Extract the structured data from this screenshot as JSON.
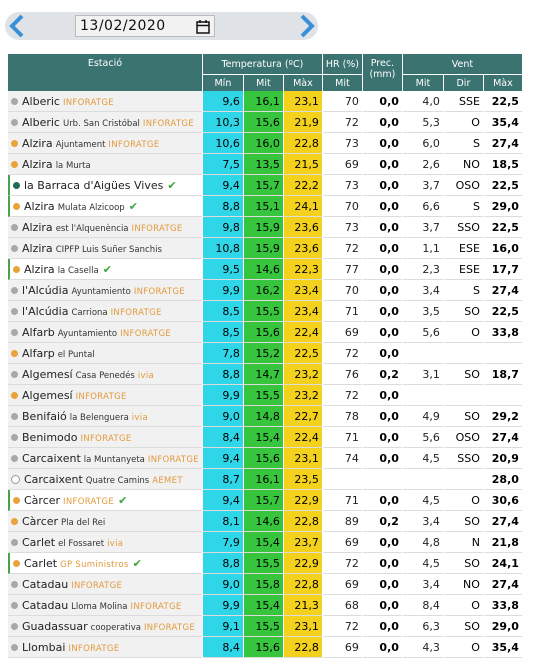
{
  "date": "13/02/2020",
  "header": {
    "station": "Estació",
    "temperature": "Temperatura (ºC)",
    "humidity": "HR (%)",
    "precipitation": "Prec. (mm)",
    "wind": "Vent",
    "sub": [
      "Mín",
      "Mit",
      "Màx",
      "Mit",
      "Mit",
      "Dir",
      "Màx"
    ]
  },
  "rows": [
    {
      "name": "Alberic",
      "source": "INFORATGE",
      "dot": "#a8a8a8",
      "verified": false,
      "cells": [
        "9,6",
        "16,1",
        "23,1",
        "70",
        "0,0",
        "4,0",
        "SSE",
        "22,5"
      ]
    },
    {
      "name": "Alberic",
      "detail": "Urb. San Cristóbal",
      "source": "INFORATGE",
      "dot": "#a8a8a8",
      "verified": false,
      "cells": [
        "10,3",
        "15,6",
        "21,9",
        "72",
        "0,0",
        "5,3",
        "O",
        "35,4"
      ]
    },
    {
      "name": "Alzira",
      "detail": "Ajuntament",
      "source": "INFORATGE",
      "dot": "#e8a33a",
      "verified": false,
      "cells": [
        "10,6",
        "16,0",
        "22,8",
        "73",
        "0,0",
        "6,0",
        "S",
        "27,4"
      ]
    },
    {
      "name": "Alzira",
      "detail": "la Murta",
      "dot": "#e8a33a",
      "verified": false,
      "cells": [
        "7,5",
        "13,5",
        "21,5",
        "69",
        "0,0",
        "2,6",
        "NO",
        "18,5"
      ]
    },
    {
      "name": "la Barraca d'Aigües Vives",
      "dot": "#1f6b5a",
      "verified": true,
      "cells": [
        "9,4",
        "15,7",
        "22,2",
        "73",
        "0,0",
        "3,7",
        "OSO",
        "22,5"
      ]
    },
    {
      "name": "Alzira",
      "detail": "Mulata Alzicoop",
      "dot": "#e8a33a",
      "verified": true,
      "cells": [
        "8,8",
        "15,1",
        "24,1",
        "70",
        "0,0",
        "6,6",
        "S",
        "29,0"
      ]
    },
    {
      "name": "Alzira",
      "detail": "est l'Alquenència",
      "source": "INFORATGE",
      "dot": "#a8a8a8",
      "verified": false,
      "cells": [
        "9,8",
        "15,9",
        "23,6",
        "73",
        "0,0",
        "3,7",
        "SSO",
        "22,5"
      ]
    },
    {
      "name": "Alzira",
      "detail": "CIPFP Luis Suñer Sanchis",
      "dot": "#a8a8a8",
      "verified": false,
      "cells": [
        "10,8",
        "15,9",
        "23,6",
        "72",
        "0,0",
        "1,1",
        "ESE",
        "16,0"
      ]
    },
    {
      "name": "Alzira",
      "detail": "la Casella",
      "dot": "#e8a33a",
      "verified": true,
      "cells": [
        "9,5",
        "14,6",
        "22,3",
        "77",
        "0,0",
        "2,3",
        "ESE",
        "17,7"
      ]
    },
    {
      "name": "l'Alcúdia",
      "detail": "Ayuntamiento",
      "source": "INFORATGE",
      "dot": "#a8a8a8",
      "verified": false,
      "cells": [
        "9,9",
        "16,2",
        "23,4",
        "70",
        "0,0",
        "3,4",
        "S",
        "27,4"
      ]
    },
    {
      "name": "l'Alcúdia",
      "detail": "Carriona",
      "source": "INFORATGE",
      "dot": "#a8a8a8",
      "verified": false,
      "cells": [
        "8,5",
        "15,5",
        "23,4",
        "71",
        "0,0",
        "3,5",
        "SO",
        "22,5"
      ]
    },
    {
      "name": "Alfarb",
      "detail": "Ayuntamiento",
      "source": "INFORATGE",
      "dot": "#a8a8a8",
      "verified": false,
      "cells": [
        "8,5",
        "15,6",
        "22,4",
        "69",
        "0,0",
        "5,6",
        "O",
        "33,8"
      ]
    },
    {
      "name": "Alfarp",
      "detail": "el Puntal",
      "dot": "#e8a33a",
      "verified": false,
      "cells": [
        "7,8",
        "15,2",
        "22,5",
        "72",
        "0,0",
        null,
        null,
        null
      ]
    },
    {
      "name": "Algemesí",
      "detail": "Casa Penedés",
      "source": "ivia",
      "dot": "#a8a8a8",
      "verified": false,
      "cells": [
        "8,8",
        "14,7",
        "23,2",
        "76",
        "0,2",
        "3,1",
        "SO",
        "18,7"
      ]
    },
    {
      "name": "Algemesí",
      "source": "INFORATGE",
      "dot": "#e8a33a",
      "verified": false,
      "cells": [
        "9,9",
        "15,5",
        "23,2",
        "72",
        "0,0",
        null,
        null,
        null
      ]
    },
    {
      "name": "Benifaió",
      "detail": "la Belenguera",
      "source": "ivia",
      "dot": "#a8a8a8",
      "verified": false,
      "cells": [
        "9,0",
        "14,8",
        "22,7",
        "78",
        "0,0",
        "4,9",
        "SO",
        "29,2"
      ]
    },
    {
      "name": "Benimodo",
      "source": "INFORATGE",
      "dot": "#a8a8a8",
      "verified": false,
      "cells": [
        "8,4",
        "15,4",
        "22,4",
        "71",
        "0,0",
        "5,6",
        "OSO",
        "27,4"
      ]
    },
    {
      "name": "Carcaixent",
      "detail": "la Muntanyeta",
      "source": "INFORATGE",
      "dot": "#a8a8a8",
      "verified": false,
      "cells": [
        "9,4",
        "15,6",
        "23,1",
        "74",
        "0,0",
        "4,5",
        "SSO",
        "20,9"
      ]
    },
    {
      "name": "Carcaixent",
      "detail": "Quatre Camins",
      "source": "AEMET",
      "dot": "#ffffff",
      "verified": false,
      "cells": [
        "8,7",
        "16,1",
        "23,5",
        null,
        null,
        null,
        null,
        "28,0"
      ]
    },
    {
      "name": "Càrcer",
      "source": "INFORATGE",
      "dot": "#e8a33a",
      "verified": true,
      "cells": [
        "9,4",
        "15,7",
        "22,9",
        "71",
        "0,0",
        "4,5",
        "O",
        "30,6"
      ]
    },
    {
      "name": "Càrcer",
      "detail": "Pla del Rei",
      "dot": "#e8a33a",
      "verified": false,
      "cells": [
        "8,1",
        "14,6",
        "22,8",
        "89",
        "0,2",
        "3,4",
        "SO",
        "27,4"
      ]
    },
    {
      "name": "Carlet",
      "detail": "el Fossaret",
      "source": "ivia",
      "dot": "#a8a8a8",
      "verified": false,
      "cells": [
        "7,9",
        "15,4",
        "23,7",
        "69",
        "0,0",
        "4,8",
        "N",
        "21,8"
      ]
    },
    {
      "name": "Carlet",
      "source": "GP Suministros",
      "dot": "#e8a33a",
      "verified": true,
      "cells": [
        "8,8",
        "15,5",
        "22,9",
        "72",
        "0,0",
        "4,5",
        "SO",
        "24,1"
      ]
    },
    {
      "name": "Catadau",
      "source": "INFORATGE",
      "dot": "#a8a8a8",
      "verified": false,
      "cells": [
        "9,0",
        "15,8",
        "22,8",
        "69",
        "0,0",
        "3,4",
        "NO",
        "27,4"
      ]
    },
    {
      "name": "Catadau",
      "detail": "Lloma Molina",
      "source": "INFORATGE",
      "dot": "#a8a8a8",
      "verified": false,
      "cells": [
        "9,9",
        "15,4",
        "21,3",
        "68",
        "0,0",
        "8,4",
        "O",
        "33,8"
      ]
    },
    {
      "name": "Guadassuar",
      "detail": "cooperativa",
      "source": "INFORATGE",
      "dot": "#a8a8a8",
      "verified": false,
      "cells": [
        "9,1",
        "15,5",
        "23,1",
        "72",
        "0,0",
        "6,3",
        "SO",
        "29,0"
      ]
    },
    {
      "name": "Llombai",
      "source": "INFORATGE",
      "dot": "#a8a8a8",
      "verified": false,
      "cells": [
        "8,4",
        "15,6",
        "22,8",
        "69",
        "0,0",
        "4,3",
        "O",
        "35,4"
      ]
    }
  ]
}
